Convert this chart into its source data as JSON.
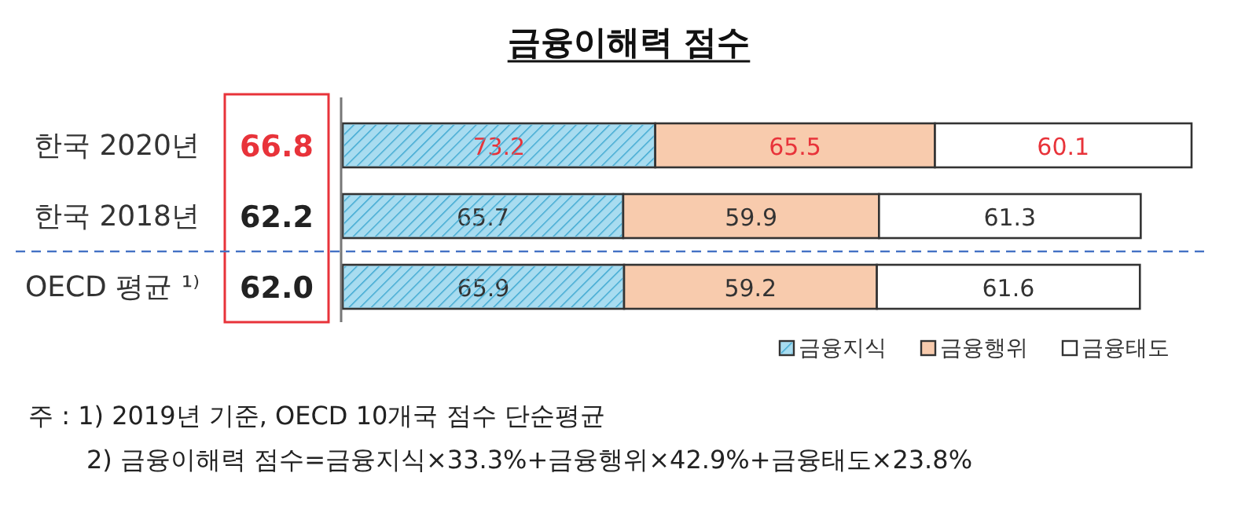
{
  "chart_data": {
    "type": "bar",
    "orientation": "horizontal",
    "stacked": true,
    "data_labels": true,
    "title": "금융이해력 점수",
    "categories": [
      "한국 2020년",
      "한국 2018년",
      "OECD 평균 ¹⁾"
    ],
    "series": [
      {
        "name": "금융지식",
        "color": "#a8dcf0",
        "values": [
          73.2,
          65.7,
          65.9
        ]
      },
      {
        "name": "금융행위",
        "color": "#f8cbad",
        "values": [
          65.5,
          59.9,
          59.2
        ]
      },
      {
        "name": "금융태도",
        "color": "#ffffff",
        "values": [
          60.1,
          61.3,
          61.6
        ]
      }
    ],
    "legend": "bottom right",
    "annotations": [
      "66.8",
      "62.2",
      "62.0",
      "주 :  1)  2019년 기준, OECD 10개국 점수 단순평균",
      "2)  금융이해력 점수=금융지식×33.3%+금융행위×42.9%+금융태도×23.8%"
    ]
  }
}
